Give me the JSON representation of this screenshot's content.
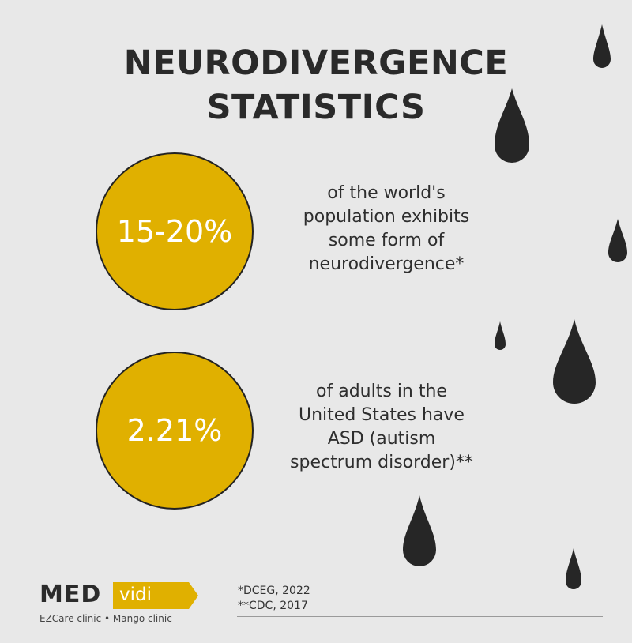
{
  "title": {
    "line1": "NEURODIVERGENCE",
    "line2": "STATISTICS"
  },
  "stats": [
    {
      "value": "15-20%",
      "lines": [
        "of the world's",
        "population exhibits",
        "some form of",
        "neurodivergence*"
      ]
    },
    {
      "value": "2.21%",
      "lines": [
        "of adults in the",
        "United States have",
        "ASD (autism",
        "spectrum disorder)**"
      ]
    }
  ],
  "references": [
    "*DCEG, 2022",
    "**CDC, 2017"
  ],
  "logo": {
    "med": "MED",
    "vidi": "vidi",
    "subtitle": "EZCare clinic • Mango clinic"
  },
  "colors": {
    "background": "#e8e8e8",
    "accent": "#e0b000",
    "drop": "#262626",
    "text": "#2b2b2b"
  }
}
